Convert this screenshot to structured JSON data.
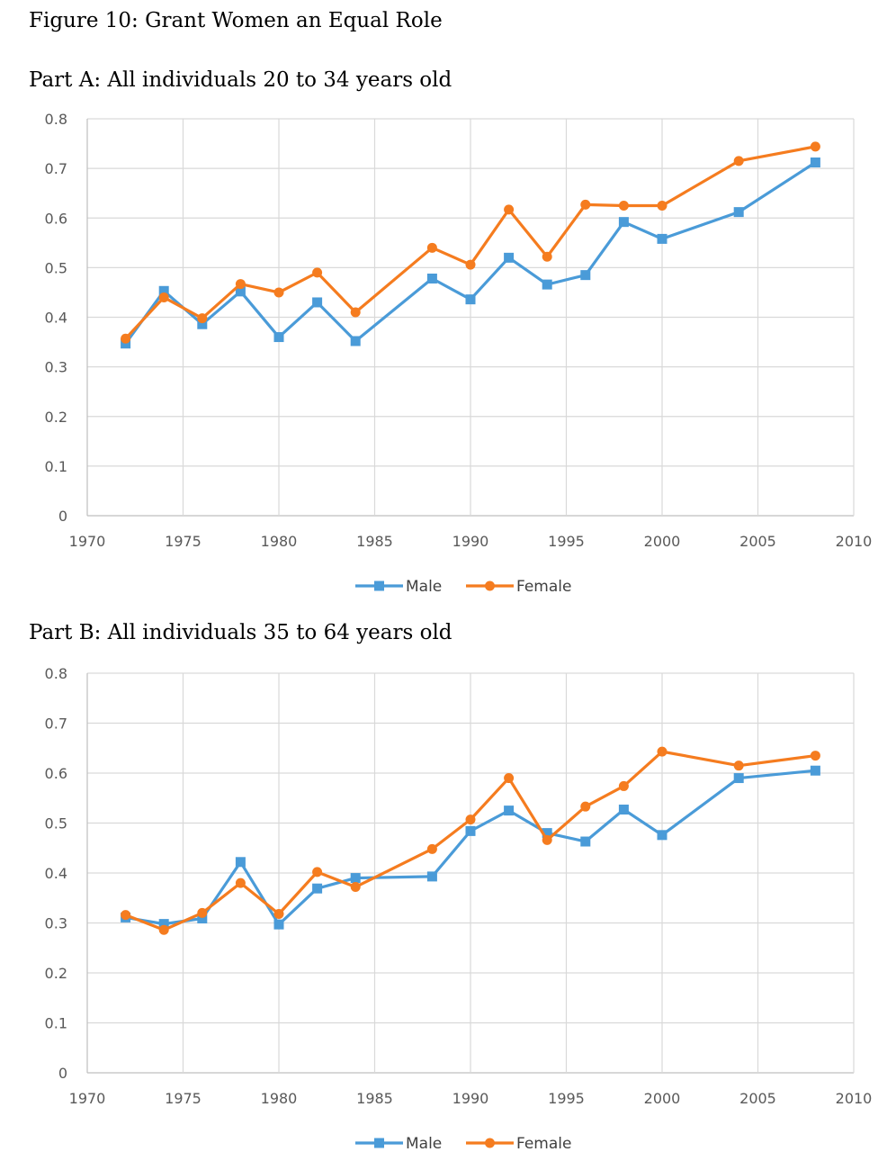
{
  "figure_title": "Figure 10: Grant Women an Equal Role",
  "colors": {
    "male": "#4a9bd8",
    "female": "#f57c1f",
    "grid": "#d9d9d9",
    "axis": "#bfbfbf",
    "text": "#595959"
  },
  "chart_data": [
    {
      "type": "line",
      "title": "Part A: All individuals 20 to 34 years old",
      "xlabel": "",
      "ylabel": "",
      "xlim": [
        1970,
        2010
      ],
      "ylim": [
        0,
        0.8
      ],
      "x_ticks": [
        "1970",
        "1975",
        "1980",
        "1985",
        "1990",
        "1995",
        "2000",
        "2005",
        "2010"
      ],
      "y_ticks": [
        "0",
        "0.1",
        "0.2",
        "0.3",
        "0.4",
        "0.5",
        "0.6",
        "0.7",
        "0.8"
      ],
      "grid": true,
      "legend": "bottom",
      "x": [
        1972,
        1974,
        1976,
        1978,
        1980,
        1982,
        1984,
        1988,
        1990,
        1992,
        1994,
        1996,
        1998,
        2000,
        2004,
        2008
      ],
      "series": [
        {
          "name": "Male",
          "marker": "square",
          "values": [
            0.347,
            0.453,
            0.386,
            0.452,
            0.36,
            0.43,
            0.352,
            0.478,
            0.436,
            0.52,
            0.466,
            0.485,
            0.592,
            0.558,
            0.612,
            0.712
          ]
        },
        {
          "name": "Female",
          "marker": "circle",
          "values": [
            0.357,
            0.44,
            0.398,
            0.467,
            0.45,
            0.49,
            0.41,
            0.54,
            0.506,
            0.617,
            0.522,
            0.627,
            0.625,
            0.625,
            0.715,
            0.744
          ]
        }
      ]
    },
    {
      "type": "line",
      "title": "Part B: All individuals 35 to 64 years old",
      "xlabel": "",
      "ylabel": "",
      "xlim": [
        1970,
        2010
      ],
      "ylim": [
        0,
        0.8
      ],
      "x_ticks": [
        "1970",
        "1975",
        "1980",
        "1985",
        "1990",
        "1995",
        "2000",
        "2005",
        "2010"
      ],
      "y_ticks": [
        "0",
        "0.1",
        "0.2",
        "0.3",
        "0.4",
        "0.5",
        "0.6",
        "0.7",
        "0.8"
      ],
      "grid": true,
      "legend": "bottom",
      "x": [
        1972,
        1974,
        1976,
        1978,
        1980,
        1982,
        1984,
        1988,
        1990,
        1992,
        1994,
        1996,
        1998,
        2000,
        2004,
        2008
      ],
      "series": [
        {
          "name": "Male",
          "marker": "square",
          "values": [
            0.311,
            0.298,
            0.309,
            0.422,
            0.297,
            0.369,
            0.39,
            0.393,
            0.484,
            0.525,
            0.48,
            0.463,
            0.527,
            0.476,
            0.59,
            0.605
          ]
        },
        {
          "name": "Female",
          "marker": "circle",
          "values": [
            0.316,
            0.286,
            0.32,
            0.38,
            0.318,
            0.402,
            0.372,
            0.448,
            0.507,
            0.59,
            0.466,
            0.533,
            0.574,
            0.643,
            0.615,
            0.635
          ]
        }
      ]
    }
  ]
}
